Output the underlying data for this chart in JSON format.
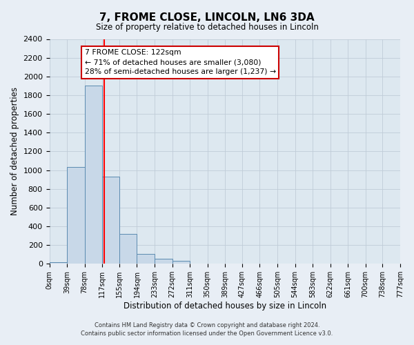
{
  "title": "7, FROME CLOSE, LINCOLN, LN6 3DA",
  "subtitle": "Size of property relative to detached houses in Lincoln",
  "xlabel": "Distribution of detached houses by size in Lincoln",
  "ylabel": "Number of detached properties",
  "bin_edges": [
    0,
    39,
    78,
    117,
    155,
    194,
    233,
    272,
    311,
    350,
    389,
    427,
    466,
    505,
    544,
    583,
    622,
    661,
    700,
    738,
    777
  ],
  "bin_labels": [
    "0sqm",
    "39sqm",
    "78sqm",
    "117sqm",
    "155sqm",
    "194sqm",
    "233sqm",
    "272sqm",
    "311sqm",
    "350sqm",
    "389sqm",
    "427sqm",
    "466sqm",
    "505sqm",
    "544sqm",
    "583sqm",
    "622sqm",
    "661sqm",
    "700sqm",
    "738sqm",
    "777sqm"
  ],
  "counts": [
    20,
    1030,
    1900,
    930,
    315,
    105,
    50,
    30,
    0,
    0,
    0,
    0,
    0,
    0,
    0,
    0,
    0,
    0,
    0,
    0
  ],
  "bar_color": "#c8d8e8",
  "bar_edge_color": "#5a8ab0",
  "property_line_x": 122,
  "ylim": [
    0,
    2400
  ],
  "yticks": [
    0,
    200,
    400,
    600,
    800,
    1000,
    1200,
    1400,
    1600,
    1800,
    2000,
    2200,
    2400
  ],
  "annotation_title": "7 FROME CLOSE: 122sqm",
  "annotation_line1": "← 71% of detached houses are smaller (3,080)",
  "annotation_line2": "28% of semi-detached houses are larger (1,237) →",
  "annotation_box_color": "#ffffff",
  "annotation_box_edge": "#cc0000",
  "footer_line1": "Contains HM Land Registry data © Crown copyright and database right 2024.",
  "footer_line2": "Contains public sector information licensed under the Open Government Licence v3.0.",
  "bg_color": "#e8eef5",
  "plot_bg_color": "#dde8f0"
}
